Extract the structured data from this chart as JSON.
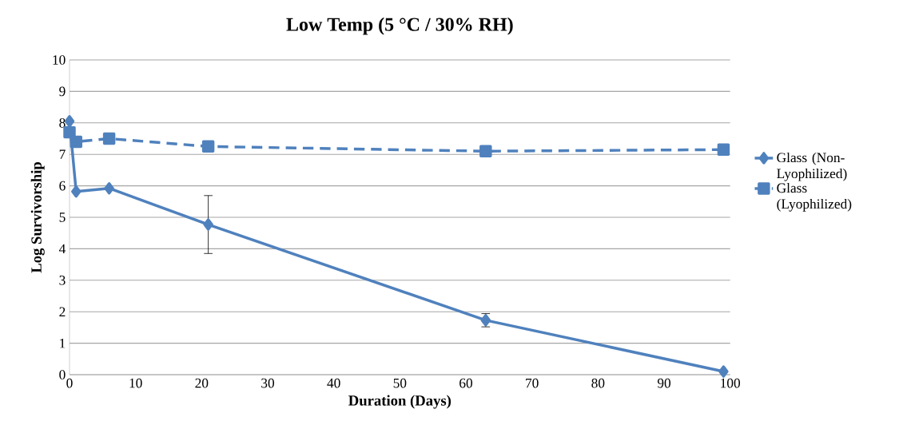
{
  "chart_data": {
    "type": "line",
    "title": "Low Temp (5 °C / 30% RH)",
    "xlabel": "Duration (Days)",
    "ylabel": "Log Survivorship",
    "x": [
      0,
      1,
      6,
      21,
      63,
      99
    ],
    "series": [
      {
        "name": "Glass (Non-Lyophilized)",
        "color": "#4f81bd",
        "marker": "diamond",
        "line_style": "solid",
        "values": [
          8.05,
          5.82,
          5.92,
          4.77,
          1.73,
          0.1
        ],
        "errors": [
          null,
          null,
          null,
          0.92,
          0.21,
          null
        ]
      },
      {
        "name": "Glass (Lyophilized)",
        "color": "#4f81bd",
        "marker": "square",
        "line_style": "dashed",
        "values": [
          7.7,
          7.4,
          7.5,
          7.25,
          7.1,
          7.15
        ]
      }
    ],
    "xlim": [
      0,
      100
    ],
    "xticks": [
      0,
      10,
      20,
      30,
      40,
      50,
      60,
      70,
      80,
      90,
      100
    ],
    "ylim": [
      0,
      10
    ],
    "yticks": [
      0,
      1,
      2,
      3,
      4,
      5,
      6,
      7,
      8,
      9,
      10
    ],
    "grid": "y",
    "legend": "right"
  }
}
